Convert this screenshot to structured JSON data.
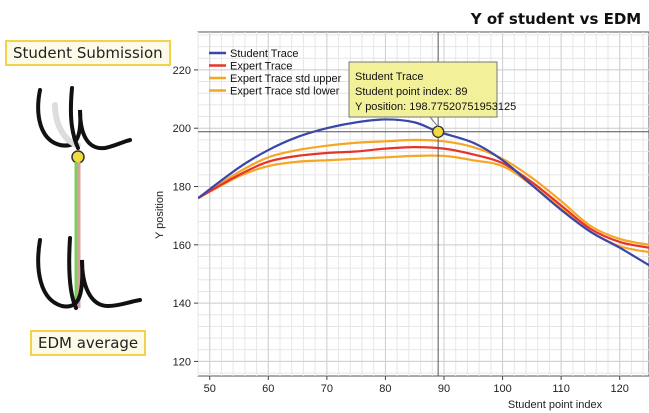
{
  "left_panel": {
    "top_label": "Student Submission",
    "bottom_label": "EDM average"
  },
  "tooltip": {
    "line1": "Student Trace",
    "line2": "Student point index: 89",
    "line3": "Y position: 198.77520751953125"
  },
  "colors": {
    "student": "#3a46a8",
    "expert": "#e8332a",
    "std_upper": "#f5a623",
    "std_lower": "#f5a623",
    "tooltip_bg": "#f3f09a",
    "marker": "#f2dc3c"
  },
  "chart_data": {
    "type": "line",
    "title": "Y of student vs EDM",
    "xlabel": "Student point index",
    "ylabel": "Y position",
    "xlim": [
      48,
      125
    ],
    "ylim": [
      115,
      233
    ],
    "xticks": [
      50,
      60,
      70,
      80,
      90,
      100,
      110,
      120
    ],
    "yticks": [
      120,
      140,
      160,
      180,
      200,
      220
    ],
    "grid": true,
    "legend_position": "top-left",
    "crosshair": {
      "x": 89,
      "y": 198.775
    },
    "series": [
      {
        "name": "Student Trace",
        "color_key": "student",
        "x": [
          48,
          55,
          60,
          65,
          70,
          75,
          80,
          85,
          89,
          95,
          100,
          105,
          110,
          115,
          120,
          125
        ],
        "y": [
          176,
          186.5,
          192.5,
          197,
          200,
          202,
          203,
          202,
          198.8,
          195,
          189,
          180.5,
          172,
          164.5,
          159,
          153
        ]
      },
      {
        "name": "Expert Trace",
        "color_key": "expert",
        "x": [
          48,
          55,
          60,
          65,
          70,
          75,
          80,
          85,
          90,
          95,
          100,
          105,
          110,
          115,
          120,
          125
        ],
        "y": [
          176,
          184,
          188.5,
          190.5,
          191.5,
          192,
          193,
          193.5,
          193,
          191,
          188,
          181.5,
          173.5,
          165.5,
          161,
          159
        ]
      },
      {
        "name": "Expert Trace std upper",
        "color_key": "std_upper",
        "x": [
          48,
          55,
          60,
          65,
          70,
          75,
          80,
          85,
          90,
          95,
          100,
          105,
          110,
          115,
          120,
          125
        ],
        "y": [
          176,
          185,
          190,
          192.5,
          194,
          195,
          195.5,
          196,
          195.5,
          193.5,
          189.5,
          183,
          175,
          166.5,
          162,
          160
        ]
      },
      {
        "name": "Expert Trace std lower",
        "color_key": "std_lower",
        "x": [
          48,
          55,
          60,
          65,
          70,
          75,
          80,
          85,
          90,
          95,
          100,
          105,
          110,
          115,
          120,
          125
        ],
        "y": [
          176,
          183.5,
          187,
          188.5,
          189,
          189.5,
          190,
          190.5,
          190.5,
          189,
          187,
          180.5,
          172.5,
          164.5,
          159.5,
          157.5
        ]
      }
    ]
  }
}
